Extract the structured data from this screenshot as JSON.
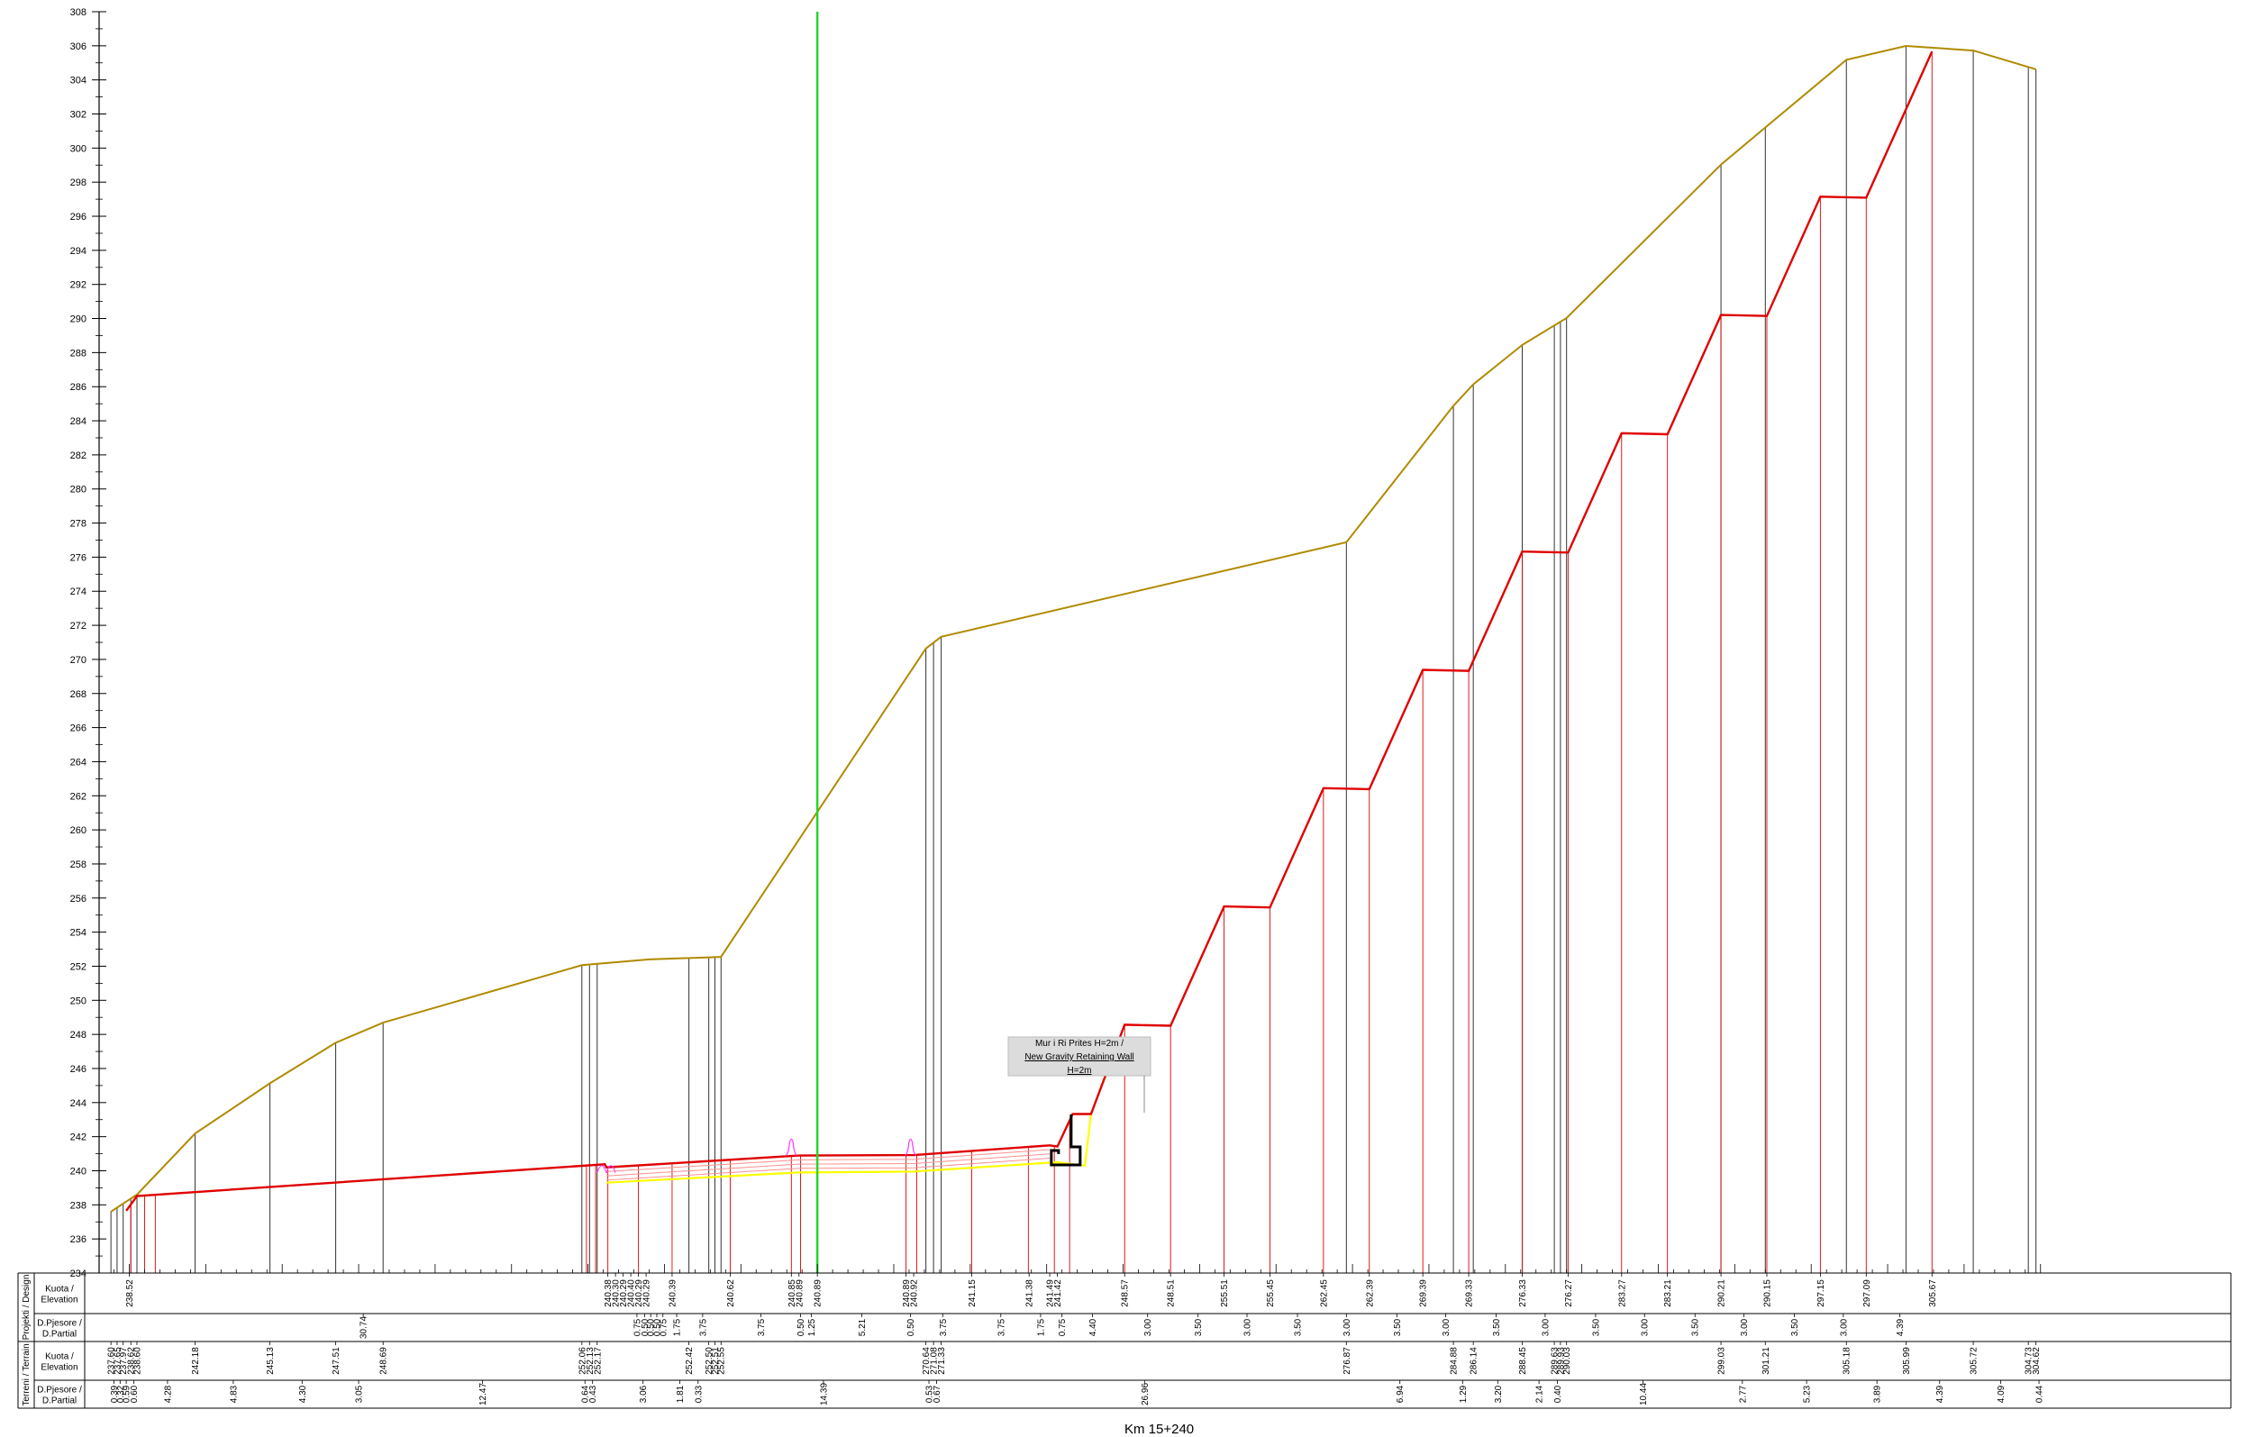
{
  "section": {
    "station": "Km   15+240"
  },
  "annotation": {
    "lines": [
      "Mur i Ri Prites H=2m /",
      "New Gravity Retaining Wall",
      "H=2m"
    ]
  },
  "table": {
    "groups": [
      {
        "label": "Projekti / Design",
        "rows": [
          "Kuota / Elevation",
          "D.Pjesore / D.Partial"
        ]
      },
      {
        "label": "Terreni / Terrain",
        "rows": [
          "Kuota / Elevation",
          "D.Pjesore / D.Partial"
        ]
      }
    ],
    "design_elevation": [
      {
        "x": 0,
        "v": "238.52"
      },
      {
        "x": 31.3,
        "v": "240.38"
      },
      {
        "x": 31.8,
        "v": "240.30"
      },
      {
        "x": 32.3,
        "v": "240.29"
      },
      {
        "x": 32.8,
        "v": "240.40"
      },
      {
        "x": 33.3,
        "v": "240.29"
      },
      {
        "x": 33.8,
        "v": "240.29"
      },
      {
        "x": 35.5,
        "v": "240.39"
      },
      {
        "x": 39.3,
        "v": "240.62"
      },
      {
        "x": 43.3,
        "v": "240.85"
      },
      {
        "x": 43.8,
        "v": "240.89"
      },
      {
        "x": 45.0,
        "v": "240.89"
      },
      {
        "x": 50.8,
        "v": "240.89"
      },
      {
        "x": 51.3,
        "v": "240.92"
      },
      {
        "x": 55.1,
        "v": "241.15"
      },
      {
        "x": 58.85,
        "v": "241.38"
      },
      {
        "x": 60.2,
        "v": "241.49"
      },
      {
        "x": 60.7,
        "v": "241.42"
      },
      {
        "x": 65.1,
        "v": "248.57"
      },
      {
        "x": 68.1,
        "v": "248.51"
      },
      {
        "x": 71.6,
        "v": "255.51"
      },
      {
        "x": 74.6,
        "v": "255.45"
      },
      {
        "x": 78.1,
        "v": "262.45"
      },
      {
        "x": 81.1,
        "v": "262.39"
      },
      {
        "x": 84.6,
        "v": "269.39"
      },
      {
        "x": 87.6,
        "v": "269.33"
      },
      {
        "x": 91.1,
        "v": "276.33"
      },
      {
        "x": 94.1,
        "v": "276.27"
      },
      {
        "x": 97.6,
        "v": "283.27"
      },
      {
        "x": 100.6,
        "v": "283.21"
      },
      {
        "x": 104.1,
        "v": "290.21"
      },
      {
        "x": 107.1,
        "v": "290.15"
      },
      {
        "x": 110.6,
        "v": "297.15"
      },
      {
        "x": 113.6,
        "v": "297.09"
      },
      {
        "x": 117.9,
        "v": "305.67"
      }
    ],
    "design_partial": [
      {
        "x": 15.3,
        "v": "30.74"
      },
      {
        "x": 33.2,
        "v": "0.75"
      },
      {
        "x": 33.7,
        "v": "0.50"
      },
      {
        "x": 34.1,
        "v": "0.50"
      },
      {
        "x": 34.5,
        "v": "0.50"
      },
      {
        "x": 34.9,
        "v": "0.75"
      },
      {
        "x": 35.8,
        "v": "1.75"
      },
      {
        "x": 37.5,
        "v": "3.75"
      },
      {
        "x": 41.3,
        "v": "3.75"
      },
      {
        "x": 43.9,
        "v": "0.50"
      },
      {
        "x": 44.6,
        "v": "1.25"
      },
      {
        "x": 47.9,
        "v": "5.21"
      },
      {
        "x": 51.1,
        "v": "0.50"
      },
      {
        "x": 53.2,
        "v": "3.75"
      },
      {
        "x": 57.0,
        "v": "3.75"
      },
      {
        "x": 59.6,
        "v": "1.75"
      },
      {
        "x": 61.0,
        "v": "0.75"
      },
      {
        "x": 63.0,
        "v": "4.40"
      },
      {
        "x": 66.6,
        "v": "3.00"
      },
      {
        "x": 69.9,
        "v": "3.50"
      },
      {
        "x": 73.1,
        "v": "3.00"
      },
      {
        "x": 76.4,
        "v": "3.50"
      },
      {
        "x": 79.6,
        "v": "3.00"
      },
      {
        "x": 82.9,
        "v": "3.50"
      },
      {
        "x": 86.1,
        "v": "3.00"
      },
      {
        "x": 89.4,
        "v": "3.50"
      },
      {
        "x": 92.6,
        "v": "3.00"
      },
      {
        "x": 95.9,
        "v": "3.50"
      },
      {
        "x": 99.1,
        "v": "3.00"
      },
      {
        "x": 102.4,
        "v": "3.50"
      },
      {
        "x": 105.6,
        "v": "3.00"
      },
      {
        "x": 108.9,
        "v": "3.50"
      },
      {
        "x": 112.1,
        "v": "3.00"
      },
      {
        "x": 115.8,
        "v": "4.39"
      }
    ],
    "terrain_elevation": [
      {
        "x": -1.2,
        "v": "237.60"
      },
      {
        "x": -0.8,
        "v": "237.65"
      },
      {
        "x": -0.4,
        "v": "237.97"
      },
      {
        "x": 0.1,
        "v": "238.62"
      },
      {
        "x": 0.5,
        "v": "238.60"
      },
      {
        "x": 4.3,
        "v": "242.18"
      },
      {
        "x": 9.2,
        "v": "245.13"
      },
      {
        "x": 13.5,
        "v": "247.51"
      },
      {
        "x": 16.6,
        "v": "248.69"
      },
      {
        "x": 29.6,
        "v": "252.06"
      },
      {
        "x": 30.1,
        "v": "252.13"
      },
      {
        "x": 30.6,
        "v": "252.17"
      },
      {
        "x": 36.6,
        "v": "252.42"
      },
      {
        "x": 37.9,
        "v": "252.50"
      },
      {
        "x": 38.3,
        "v": "252.51"
      },
      {
        "x": 38.7,
        "v": "252.55"
      },
      {
        "x": 52.1,
        "v": "270.64"
      },
      {
        "x": 52.6,
        "v": "271.08"
      },
      {
        "x": 53.1,
        "v": "271.33"
      },
      {
        "x": 79.6,
        "v": "276.87"
      },
      {
        "x": 86.6,
        "v": "284.88"
      },
      {
        "x": 87.9,
        "v": "286.14"
      },
      {
        "x": 91.1,
        "v": "288.45"
      },
      {
        "x": 93.2,
        "v": "289.63"
      },
      {
        "x": 93.6,
        "v": "289.93"
      },
      {
        "x": 94.0,
        "v": "290.03"
      },
      {
        "x": 104.1,
        "v": "299.03"
      },
      {
        "x": 107.0,
        "v": "301.21"
      },
      {
        "x": 112.3,
        "v": "305.18"
      },
      {
        "x": 116.2,
        "v": "305.99"
      },
      {
        "x": 120.6,
        "v": "305.72"
      },
      {
        "x": 124.2,
        "v": "304.73"
      },
      {
        "x": 124.7,
        "v": "304.62"
      }
    ],
    "terrain_partial": [
      {
        "x": -1.0,
        "v": "0.39"
      },
      {
        "x": -0.6,
        "v": "0.32"
      },
      {
        "x": -0.2,
        "v": "0.59"
      },
      {
        "x": 0.3,
        "v": "0.60"
      },
      {
        "x": 2.5,
        "v": "4.28"
      },
      {
        "x": 6.8,
        "v": "4.83"
      },
      {
        "x": 11.3,
        "v": "4.30"
      },
      {
        "x": 15.0,
        "v": "3.05"
      },
      {
        "x": 23.1,
        "v": "12.47"
      },
      {
        "x": 29.8,
        "v": "0.64"
      },
      {
        "x": 30.3,
        "v": "0.43"
      },
      {
        "x": 33.6,
        "v": "3.06"
      },
      {
        "x": 36.0,
        "v": "1.81"
      },
      {
        "x": 37.2,
        "v": "0.33"
      },
      {
        "x": 45.4,
        "v": "14.39"
      },
      {
        "x": 52.3,
        "v": "0.53"
      },
      {
        "x": 52.8,
        "v": "0.67"
      },
      {
        "x": 66.4,
        "v": "26.96"
      },
      {
        "x": 83.1,
        "v": "6.94"
      },
      {
        "x": 87.2,
        "v": "1.29"
      },
      {
        "x": 89.5,
        "v": "3.20"
      },
      {
        "x": 92.2,
        "v": "2.14"
      },
      {
        "x": 93.4,
        "v": "0.40"
      },
      {
        "x": 99.0,
        "v": "10.44"
      },
      {
        "x": 105.5,
        "v": "2.77"
      },
      {
        "x": 109.7,
        "v": "5.23"
      },
      {
        "x": 114.3,
        "v": "3.89"
      },
      {
        "x": 118.4,
        "v": "4.39"
      },
      {
        "x": 122.4,
        "v": "4.09"
      },
      {
        "x": 124.9,
        "v": "0.44"
      }
    ]
  },
  "axis": {
    "y_min": 234,
    "y_max": 308,
    "y_step": 2,
    "tick_labels": [
      "234",
      "236",
      "238",
      "240",
      "242",
      "244",
      "246",
      "248",
      "250",
      "252",
      "254",
      "256",
      "258",
      "260",
      "262",
      "264",
      "266",
      "268",
      "270",
      "272",
      "274",
      "276",
      "278",
      "280",
      "282",
      "284",
      "286",
      "288",
      "290",
      "292",
      "294",
      "296",
      "298",
      "300",
      "302",
      "304",
      "306",
      "308"
    ]
  },
  "profile": {
    "colors": {
      "ground": "#b08a00",
      "design": "#e00000",
      "centerline": "#22d622",
      "subgrade": "#ffff00",
      "pavement": "#ff9090",
      "drain": "#ff33ff",
      "wall": "#000000"
    },
    "ground_line": [
      [
        -1.2,
        237.6
      ],
      [
        0.5,
        238.6
      ],
      [
        4.3,
        242.18
      ],
      [
        9.2,
        245.13
      ],
      [
        13.5,
        247.51
      ],
      [
        16.6,
        248.69
      ],
      [
        29.6,
        252.06
      ],
      [
        34.0,
        252.4
      ],
      [
        38.7,
        252.55
      ],
      [
        52.1,
        270.64
      ],
      [
        53.1,
        271.33
      ],
      [
        79.6,
        276.87
      ],
      [
        86.6,
        284.88
      ],
      [
        87.9,
        286.14
      ],
      [
        91.1,
        288.45
      ],
      [
        94.0,
        290.03
      ],
      [
        104.1,
        299.03
      ],
      [
        107.0,
        301.21
      ],
      [
        112.3,
        305.18
      ],
      [
        116.2,
        305.99
      ],
      [
        120.6,
        305.72
      ],
      [
        124.7,
        304.62
      ]
    ],
    "design_line": [
      [
        -0.2,
        237.65
      ],
      [
        0.5,
        238.52
      ],
      [
        31.1,
        240.38
      ],
      [
        31.2,
        240.2
      ],
      [
        43.8,
        240.89
      ],
      [
        51.3,
        240.92
      ],
      [
        60.2,
        241.49
      ],
      [
        60.7,
        241.42
      ],
      [
        61.7,
        243.33
      ],
      [
        62.9,
        243.33
      ],
      [
        65.1,
        248.57
      ],
      [
        68.1,
        248.51
      ],
      [
        71.6,
        255.51
      ],
      [
        74.6,
        255.45
      ],
      [
        78.1,
        262.45
      ],
      [
        81.1,
        262.39
      ],
      [
        84.6,
        269.39
      ],
      [
        87.6,
        269.33
      ],
      [
        91.1,
        276.33
      ],
      [
        94.1,
        276.27
      ],
      [
        97.6,
        283.27
      ],
      [
        100.6,
        283.21
      ],
      [
        104.1,
        290.21
      ],
      [
        107.1,
        290.15
      ],
      [
        110.6,
        297.15
      ],
      [
        113.6,
        297.09
      ],
      [
        117.9,
        305.67
      ]
    ],
    "centerline_x": 45.0,
    "design_vertical_x": [
      0.1,
      1.0,
      1.7,
      29.9,
      30.5,
      31.3,
      33.3,
      35.5,
      39.3,
      43.3,
      43.9,
      45.0,
      50.8,
      51.5,
      55.1,
      58.8,
      60.5,
      61.5,
      65.1,
      68.1,
      71.6,
      74.6,
      78.1,
      81.1,
      84.6,
      87.6,
      91.1,
      94.1,
      97.6,
      100.6,
      104.1,
      107.1,
      110.6,
      113.6,
      117.9
    ],
    "ground_vertical_x": [
      -1.2,
      -0.8,
      -0.4,
      0.1,
      0.5,
      4.3,
      9.2,
      13.5,
      16.6,
      29.6,
      30.1,
      30.6,
      36.6,
      37.9,
      38.3,
      38.7,
      52.1,
      52.6,
      53.1,
      79.6,
      86.6,
      87.9,
      91.1,
      93.2,
      93.6,
      94.0,
      104.1,
      107.0,
      112.3,
      116.2,
      120.6,
      124.2,
      124.7
    ]
  }
}
